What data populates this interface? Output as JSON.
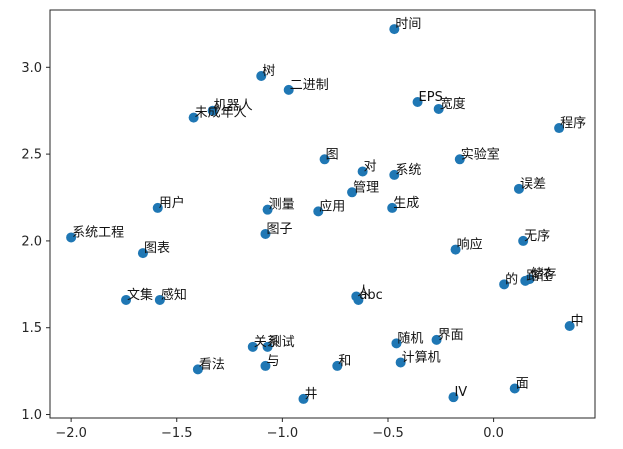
{
  "chart_data": {
    "type": "scatter",
    "title": "",
    "xlabel": "",
    "ylabel": "",
    "xlim": [
      -2.1,
      0.48
    ],
    "ylim": [
      0.98,
      3.33
    ],
    "xticks": [
      -2.0,
      -1.5,
      -1.0,
      -0.5,
      0.0
    ],
    "xtick_labels": [
      "−2.0",
      "−1.5",
      "−1.0",
      "−0.5",
      "0.0"
    ],
    "yticks": [
      1.0,
      1.5,
      2.0,
      2.5,
      3.0
    ],
    "ytick_labels": [
      "1.0",
      "1.5",
      "2.0",
      "2.5",
      "3.0"
    ],
    "grid": false,
    "marker_color": "#1f77b4",
    "points": [
      {
        "x": -0.47,
        "y": 3.22,
        "label": "时间"
      },
      {
        "x": -1.1,
        "y": 2.95,
        "label": "树"
      },
      {
        "x": -0.97,
        "y": 2.87,
        "label": "二进制"
      },
      {
        "x": -1.42,
        "y": 2.71,
        "label": "未成年人"
      },
      {
        "x": -1.33,
        "y": 2.75,
        "label": "机器人"
      },
      {
        "x": -0.36,
        "y": 2.8,
        "label": "EPS"
      },
      {
        "x": -0.26,
        "y": 2.76,
        "label": "宽度"
      },
      {
        "x": 0.31,
        "y": 2.65,
        "label": "程序"
      },
      {
        "x": -0.8,
        "y": 2.47,
        "label": "图"
      },
      {
        "x": -0.16,
        "y": 2.47,
        "label": "实验室"
      },
      {
        "x": -0.62,
        "y": 2.4,
        "label": "对"
      },
      {
        "x": -0.47,
        "y": 2.38,
        "label": "系统"
      },
      {
        "x": 0.12,
        "y": 2.3,
        "label": "误差"
      },
      {
        "x": -0.67,
        "y": 2.28,
        "label": "管理"
      },
      {
        "x": -1.59,
        "y": 2.19,
        "label": "用户"
      },
      {
        "x": -1.07,
        "y": 2.18,
        "label": "测量"
      },
      {
        "x": -0.83,
        "y": 2.17,
        "label": "应用"
      },
      {
        "x": -0.48,
        "y": 2.19,
        "label": "生成"
      },
      {
        "x": -1.08,
        "y": 2.04,
        "label": "图子"
      },
      {
        "x": -2.0,
        "y": 2.02,
        "label": "系统工程"
      },
      {
        "x": 0.14,
        "y": 2.0,
        "label": "无序"
      },
      {
        "x": -1.66,
        "y": 1.93,
        "label": "图表"
      },
      {
        "x": -0.18,
        "y": 1.95,
        "label": "响应"
      },
      {
        "x": 0.05,
        "y": 1.75,
        "label": "的"
      },
      {
        "x": 0.15,
        "y": 1.77,
        "label": "路径"
      },
      {
        "x": 0.17,
        "y": 1.78,
        "label": "储存"
      },
      {
        "x": -1.74,
        "y": 1.66,
        "label": "文集"
      },
      {
        "x": -1.58,
        "y": 1.66,
        "label": "感知"
      },
      {
        "x": -0.65,
        "y": 1.68,
        "label": "人"
      },
      {
        "x": -0.64,
        "y": 1.66,
        "label": "abc"
      },
      {
        "x": 0.36,
        "y": 1.51,
        "label": "中"
      },
      {
        "x": -1.14,
        "y": 1.39,
        "label": "关系"
      },
      {
        "x": -1.07,
        "y": 1.39,
        "label": "测试"
      },
      {
        "x": -0.46,
        "y": 1.41,
        "label": "随机"
      },
      {
        "x": -0.27,
        "y": 1.43,
        "label": "界面"
      },
      {
        "x": -1.4,
        "y": 1.26,
        "label": "看法"
      },
      {
        "x": -1.08,
        "y": 1.28,
        "label": "与"
      },
      {
        "x": -0.74,
        "y": 1.28,
        "label": "和"
      },
      {
        "x": -0.44,
        "y": 1.3,
        "label": "计算机"
      },
      {
        "x": -0.9,
        "y": 1.09,
        "label": "井"
      },
      {
        "x": -0.19,
        "y": 1.1,
        "label": "IV"
      },
      {
        "x": 0.1,
        "y": 1.15,
        "label": "面"
      }
    ]
  }
}
